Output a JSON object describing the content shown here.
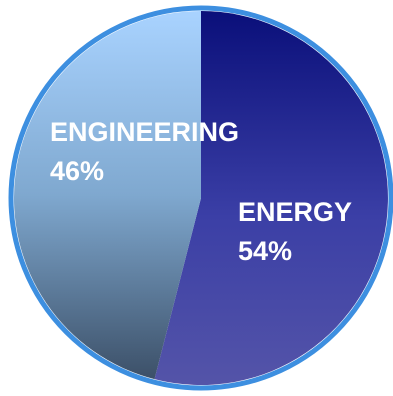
{
  "chart_data": {
    "type": "pie",
    "categories": [
      "ENERGY",
      "ENGINEERING"
    ],
    "values": [
      54,
      46
    ],
    "value_labels": [
      "54%",
      "46%"
    ],
    "colors": {
      "ENERGY": [
        "#0a0f7a",
        "#3b3fa6",
        "#5454a8"
      ],
      "ENGINEERING": [
        "#a9d3ff",
        "#7fa8cf",
        "#3c5068"
      ],
      "border": "#3d8fe0"
    }
  }
}
